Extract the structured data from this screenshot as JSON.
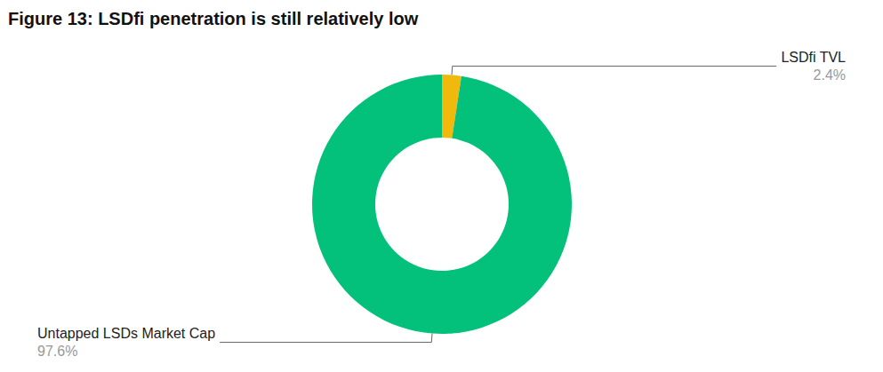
{
  "chart_data": {
    "type": "donut",
    "title": "Figure 13: LSDfi penetration is still relatively low",
    "categories": [
      "LSDfi TVL",
      "Untapped LSDs Market Cap"
    ],
    "values": [
      2.4,
      97.6
    ],
    "value_labels": [
      "2.4%",
      "97.6%"
    ],
    "colors": [
      "#F0B90B",
      "#03C17A"
    ],
    "data_labels": true
  }
}
